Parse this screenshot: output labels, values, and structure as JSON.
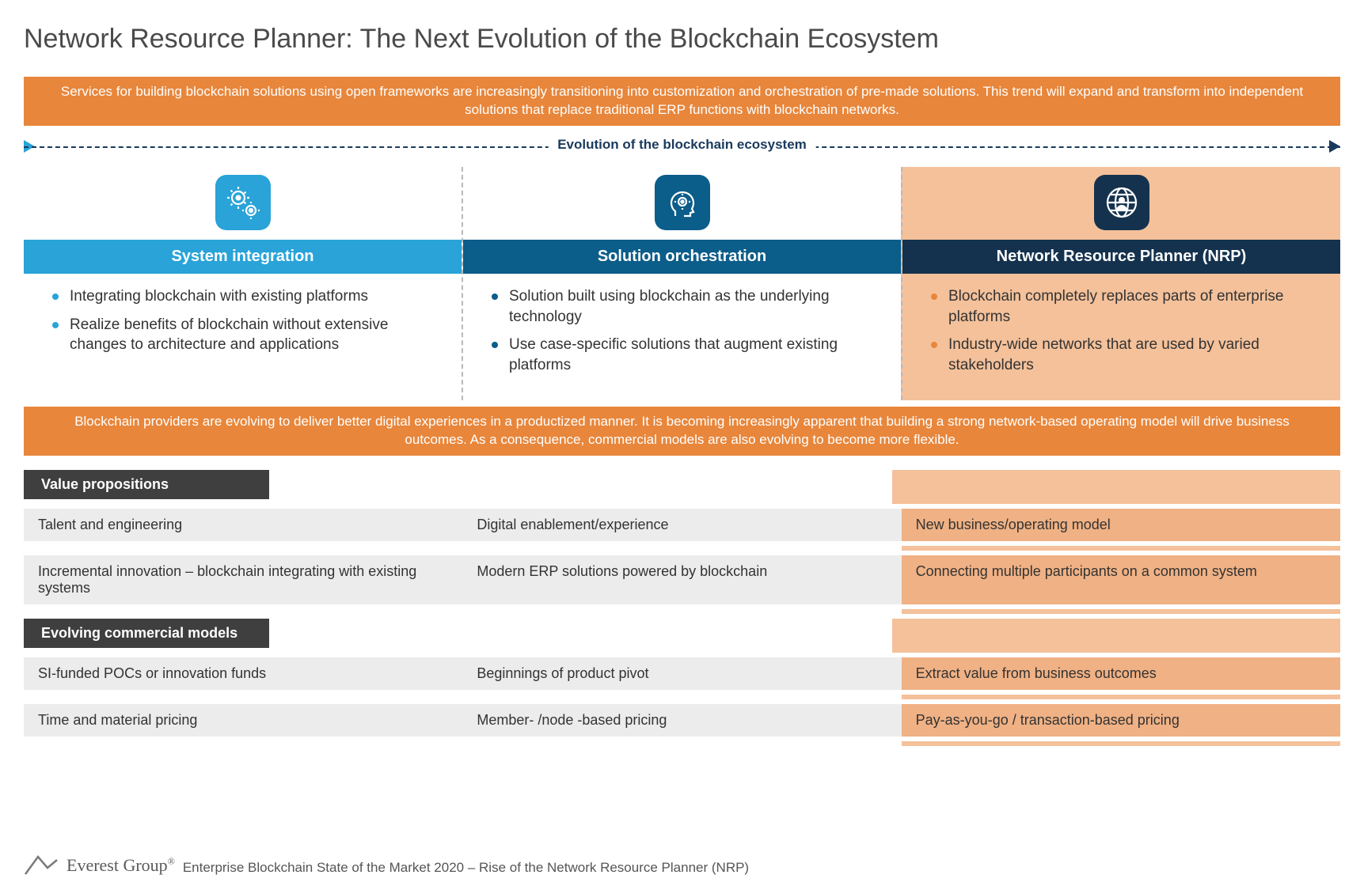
{
  "title": "Network Resource Planner: The Next Evolution of the Blockchain Ecosystem",
  "banner1": "Services for building blockchain solutions using open frameworks are increasingly transitioning into customization and orchestration of pre-made solutions. This trend will expand and transform into independent solutions that replace traditional ERP functions with blockchain networks.",
  "evolution_label": "Evolution of the blockchain ecosystem",
  "colors": {
    "banner_orange": "#e8863b",
    "col1_header": "#29a3d8",
    "col2_header": "#0b5d8a",
    "col3_header": "#14324e",
    "col3_highlight": "#f4c19a",
    "col3_row_grey": "#f0b184",
    "row_grey": "#ececec",
    "section_label": "#3f3f3f",
    "arrow_dark": "#1a3a5c",
    "arrow_light": "#29a3d8",
    "bullet_col1": "#29a3d8",
    "bullet_col2": "#0b5d8a",
    "bullet_col3": "#e8863b"
  },
  "columns": [
    {
      "id": "system-integration",
      "header": "System integration",
      "icon": "gears-icon",
      "icon_bg": "#29a3d8",
      "bullets": [
        "Integrating blockchain with existing platforms",
        "Realize benefits of blockchain without extensive changes to architecture and applications"
      ]
    },
    {
      "id": "solution-orchestration",
      "header": "Solution orchestration",
      "icon": "head-gears-icon",
      "icon_bg": "#0b5d8a",
      "bullets": [
        "Solution built using blockchain as the underlying technology",
        "Use case-specific solutions that augment existing platforms"
      ]
    },
    {
      "id": "network-resource-planner",
      "header": "Network Resource Planner (NRP)",
      "icon": "globe-person-icon",
      "icon_bg": "#14324e",
      "bullets": [
        "Blockchain completely replaces parts of enterprise platforms",
        "Industry-wide networks that are used by varied stakeholders"
      ]
    }
  ],
  "banner2": "Blockchain providers are evolving to deliver better digital experiences in a productized manner. It is becoming increasingly apparent that building a strong network-based operating model will drive business outcomes. As a consequence, commercial models are also evolving to become more flexible.",
  "sections": [
    {
      "label": "Value propositions",
      "rows": [
        [
          "Talent and engineering",
          "Digital enablement/experience",
          "New business/operating model"
        ],
        [
          "Incremental innovation – blockchain integrating with existing systems",
          "Modern ERP solutions powered by blockchain",
          "Connecting multiple participants on a common system"
        ]
      ]
    },
    {
      "label": "Evolving commercial models",
      "rows": [
        [
          "SI-funded POCs or innovation funds",
          "Beginnings of product pivot",
          "Extract value from business outcomes"
        ],
        [
          "Time and material pricing",
          "Member- /node -based pricing",
          "Pay-as-you-go / transaction-based pricing"
        ]
      ]
    }
  ],
  "footer": {
    "logo_text": "Everest Group",
    "source": "Enterprise Blockchain State of the Market 2020 – Rise of the Network Resource Planner (NRP)"
  }
}
